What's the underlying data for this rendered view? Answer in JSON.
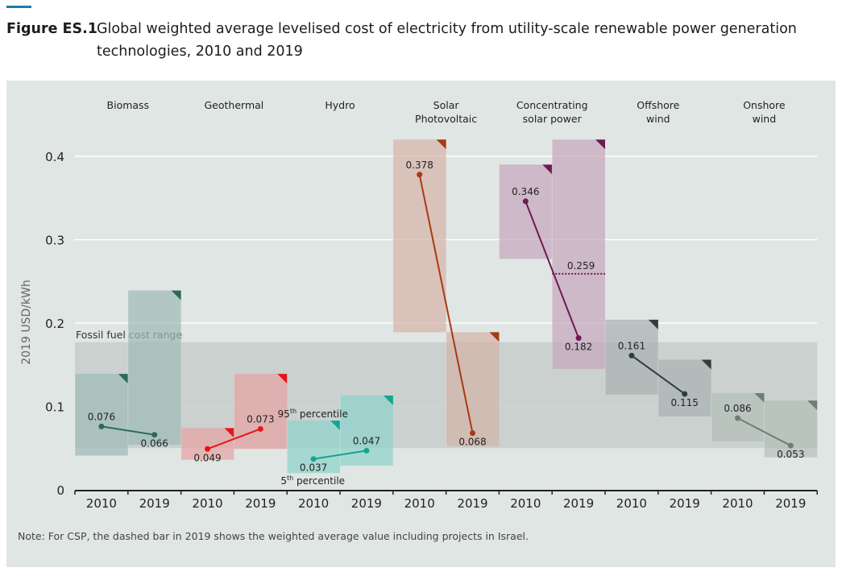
{
  "figure": {
    "label": "Figure ES.1",
    "title": "Global weighted average levelised cost of electricity from utility-scale renewable power generation technologies, 2010 and 2019",
    "accent_color": "#1a7ea8",
    "note": "Note: For CSP, the dashed bar in 2019 shows the weighted average value including projects in Israel."
  },
  "chart_data": {
    "type": "bar",
    "title": "Global weighted average levelised cost of electricity from utility-scale renewable power generation technologies, 2010 and 2019",
    "xlabel": "",
    "ylabel": "2019 USD/kWh",
    "ylim": [
      0,
      0.4
    ],
    "yticks": [
      0,
      0.1,
      0.2,
      0.3,
      0.4
    ],
    "ytick_labels": [
      "0",
      "0.1",
      "0.2",
      "0.3",
      "0.4"
    ],
    "grid": true,
    "fossil_fuel_range": {
      "label": "Fossil fuel cost range",
      "low": 0.05,
      "high": 0.177
    },
    "annotations": {
      "p95": {
        "text": "95",
        "sup": "th",
        "rest": " percentile"
      },
      "p5": {
        "text": "5",
        "sup": "th",
        "rest": " percentile"
      }
    },
    "technologies": [
      {
        "name": "Biomass",
        "name_lines": [
          "Biomass"
        ],
        "color": "#2b6a58",
        "fill": "#9fbbb5",
        "years": [
          {
            "year": "2010",
            "p5": 0.041,
            "p95": 0.139,
            "avg": 0.076,
            "label": "0.076"
          },
          {
            "year": "2019",
            "p5": 0.054,
            "p95": 0.239,
            "avg": 0.066,
            "label": "0.066"
          }
        ]
      },
      {
        "name": "Geothermal",
        "name_lines": [
          "Geothermal"
        ],
        "color": "#e8141b",
        "fill": "#e6a3a4",
        "years": [
          {
            "year": "2010",
            "p5": 0.036,
            "p95": 0.074,
            "avg": 0.049,
            "label": "0.049"
          },
          {
            "year": "2019",
            "p5": 0.049,
            "p95": 0.139,
            "avg": 0.073,
            "label": "0.073"
          }
        ]
      },
      {
        "name": "Hydro",
        "name_lines": [
          "Hydro"
        ],
        "color": "#12a591",
        "fill": "#8fd3ca",
        "years": [
          {
            "year": "2010",
            "p5": 0.02,
            "p95": 0.083,
            "avg": 0.037,
            "label": "0.037"
          },
          {
            "year": "2019",
            "p5": 0.029,
            "p95": 0.113,
            "avg": 0.047,
            "label": "0.047"
          }
        ]
      },
      {
        "name": "Solar Photovoltaic",
        "name_lines": [
          "Solar",
          "Photovoltaic"
        ],
        "color": "#a83a12",
        "fill": "#d4b4a7",
        "years": [
          {
            "year": "2010",
            "p5": 0.189,
            "p95": 0.42,
            "avg": 0.378,
            "label": "0.378"
          },
          {
            "year": "2019",
            "p5": 0.052,
            "p95": 0.189,
            "avg": 0.068,
            "label": "0.068"
          }
        ]
      },
      {
        "name": "Concentrating solar power",
        "name_lines": [
          "Concentrating",
          "solar power"
        ],
        "color": "#6e1a55",
        "fill": "#c5a8bd",
        "years": [
          {
            "year": "2010",
            "p5": 0.277,
            "p95": 0.39,
            "avg": 0.346,
            "label": "0.346"
          },
          {
            "year": "2019",
            "p5": 0.145,
            "p95": 0.42,
            "avg": 0.182,
            "label": "0.182",
            "dashed_avg": 0.259,
            "dashed_label": "0.259"
          }
        ]
      },
      {
        "name": "Offshore wind",
        "name_lines": [
          "Offshore",
          "wind"
        ],
        "color": "#2f3d3b",
        "fill": "#a9b3b1",
        "years": [
          {
            "year": "2010",
            "p5": 0.114,
            "p95": 0.204,
            "avg": 0.161,
            "label": "0.161"
          },
          {
            "year": "2019",
            "p5": 0.088,
            "p95": 0.156,
            "avg": 0.115,
            "label": "0.115"
          }
        ]
      },
      {
        "name": "Onshore wind",
        "name_lines": [
          "Onshore",
          "wind"
        ],
        "color": "#6e7e74",
        "fill": "#b4bfb9",
        "years": [
          {
            "year": "2010",
            "p5": 0.058,
            "p95": 0.116,
            "avg": 0.086,
            "label": "0.086"
          },
          {
            "year": "2019",
            "p5": 0.039,
            "p95": 0.107,
            "avg": 0.053,
            "label": "0.053"
          }
        ]
      }
    ]
  }
}
